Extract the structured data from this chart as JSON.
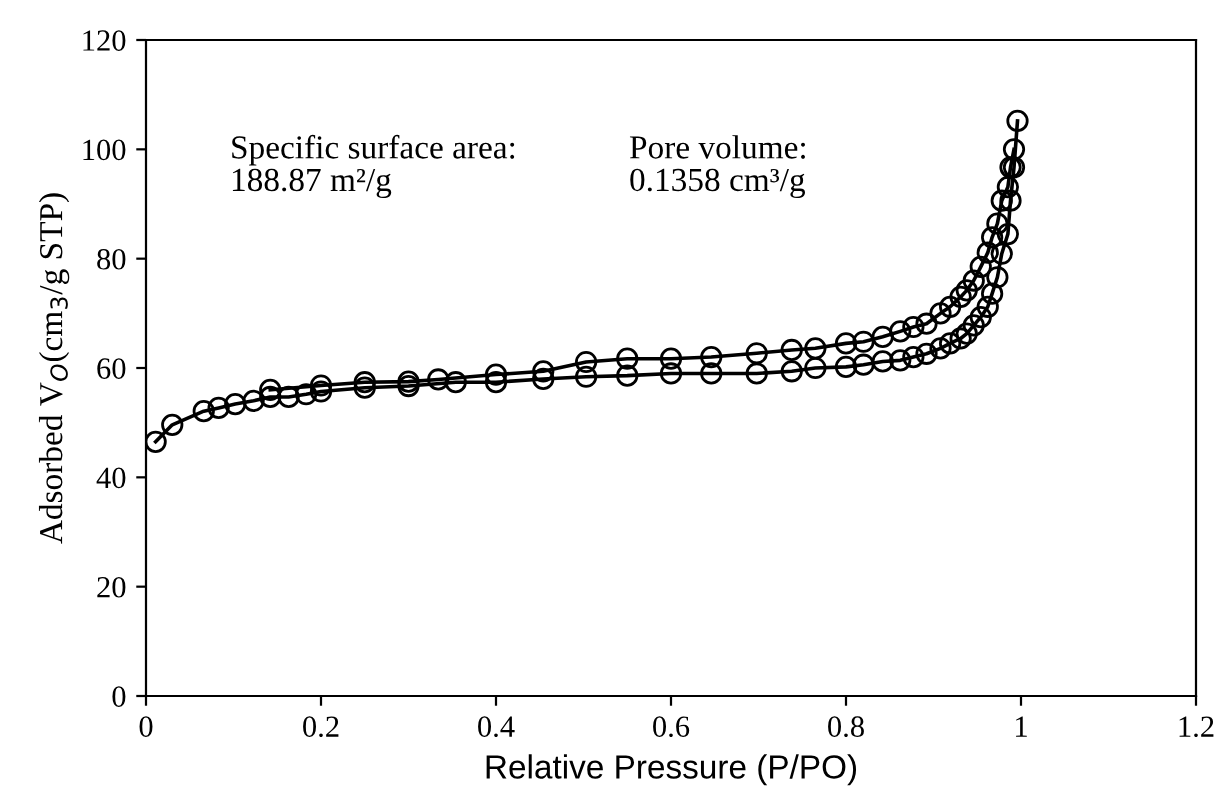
{
  "chart_data": {
    "type": "line",
    "xlabel": "Relative Pressure (P/PO)",
    "ylabel": "Adsorbed V$_{O}$(cm$_{3}$/g STP)",
    "xlim": [
      0,
      1.2
    ],
    "ylim": [
      0,
      120
    ],
    "xticks": [
      0,
      0.2,
      0.4,
      0.6,
      0.8,
      1,
      1.2
    ],
    "yticks": [
      0,
      20,
      40,
      60,
      80,
      100,
      120
    ],
    "grid": false,
    "legend": false,
    "marker": "circle",
    "line_style": "solid",
    "annotations": [
      "Specific surface area:\n188.87 m²/g",
      "Pore volume:\n0.1358 cm³/g"
    ],
    "series": [
      {
        "color": "#000000",
        "x": [
          0.011,
          0.03,
          0.066,
          0.083,
          0.102,
          0.123,
          0.142,
          0.163,
          0.183,
          0.2,
          0.25,
          0.3,
          0.354,
          0.4,
          0.454,
          0.503,
          0.55,
          0.6,
          0.646,
          0.698,
          0.738,
          0.765,
          0.8,
          0.82,
          0.842,
          0.862,
          0.877,
          0.892,
          0.908,
          0.919,
          0.931,
          0.938,
          0.946,
          0.954,
          0.962,
          0.967,
          0.973,
          0.978,
          0.985,
          0.988,
          0.992,
          0.996
        ],
        "values": [
          46.5,
          49.6,
          52.1,
          52.7,
          53.4,
          54.0,
          54.7,
          54.7,
          55.2,
          55.7,
          56.4,
          56.7,
          57.4,
          57.4,
          58.0,
          58.4,
          58.6,
          59.0,
          59.0,
          59.0,
          59.4,
          60.0,
          60.2,
          60.6,
          61.2,
          61.4,
          62.0,
          62.6,
          63.6,
          64.5,
          65.4,
          66.3,
          67.8,
          69.3,
          71.2,
          73.6,
          76.6,
          80.9,
          84.5,
          90.6,
          96.7,
          105.2
        ]
      },
      {
        "color": "#000000",
        "x": [
          0.992,
          0.988,
          0.985,
          0.978,
          0.973,
          0.967,
          0.962,
          0.954,
          0.946,
          0.938,
          0.931,
          0.919,
          0.908,
          0.892,
          0.877,
          0.862,
          0.842,
          0.82,
          0.8,
          0.765,
          0.738,
          0.698,
          0.646,
          0.6,
          0.55,
          0.503,
          0.454,
          0.4,
          0.334,
          0.3,
          0.25,
          0.2,
          0.142
        ],
        "values": [
          100.0,
          96.7,
          93.1,
          90.6,
          86.4,
          83.9,
          81.1,
          78.5,
          76.0,
          74.2,
          73.0,
          71.2,
          70.0,
          68.1,
          67.5,
          66.7,
          65.7,
          64.8,
          64.5,
          63.6,
          63.3,
          62.7,
          62.0,
          61.7,
          61.7,
          61.1,
          59.4,
          58.8,
          57.9,
          57.5,
          57.4,
          56.8,
          56.0
        ]
      }
    ]
  }
}
